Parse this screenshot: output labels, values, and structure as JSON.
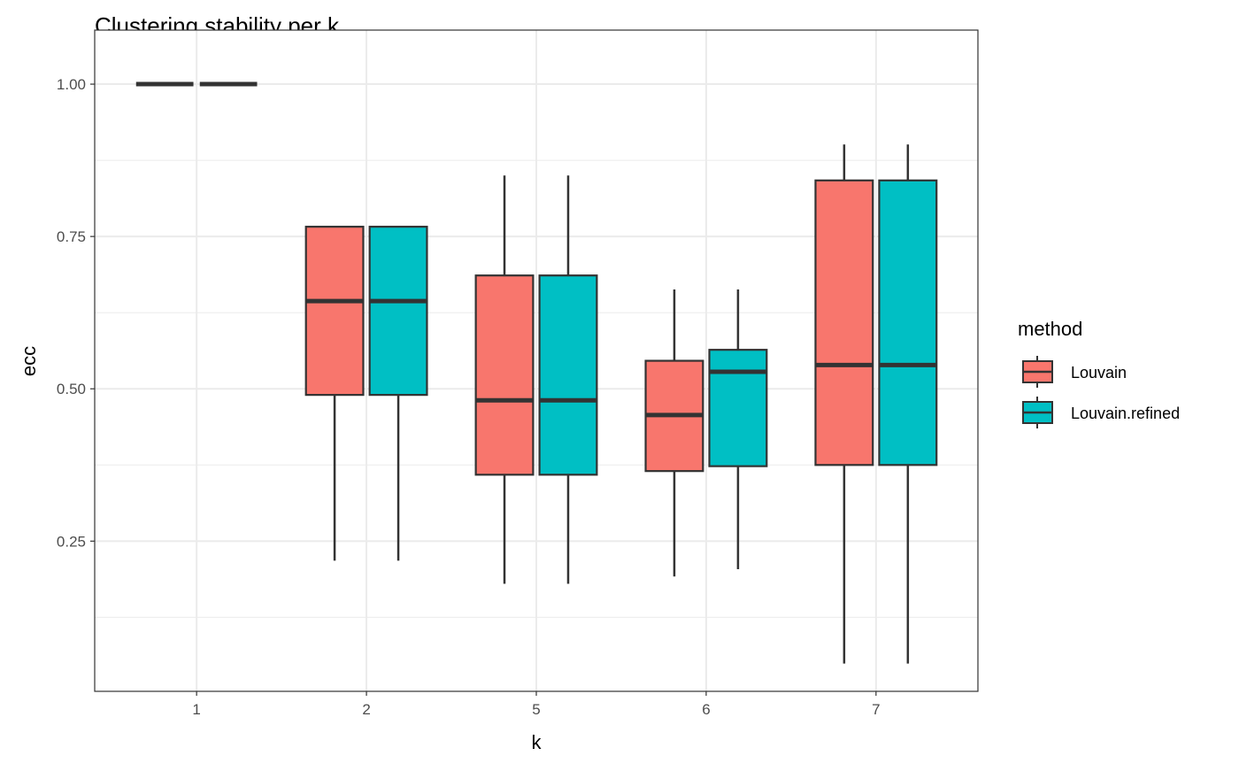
{
  "chart_data": {
    "type": "boxplot",
    "title": "Clustering stability per k",
    "xlabel": "k",
    "ylabel": "ecc",
    "categories": [
      "1",
      "2",
      "5",
      "6",
      "7"
    ],
    "yticks": [
      0.25,
      0.5,
      0.75,
      1.0
    ],
    "ytick_labels": [
      "0.25",
      "0.50",
      "0.75",
      "1.00"
    ],
    "ylim": [
      0.0035,
      1.0887
    ],
    "grid": true,
    "legend": {
      "title": "method",
      "position": "right"
    },
    "series": [
      {
        "name": "Louvain",
        "color": "#F8766D",
        "boxes": [
          {
            "k": "1",
            "min": 1.0,
            "q1": 1.0,
            "median": 1.0,
            "q3": 1.0,
            "max": 1.0
          },
          {
            "k": "2",
            "min": 0.218,
            "q1": 0.49,
            "median": 0.644,
            "q3": 0.766,
            "max": 0.766
          },
          {
            "k": "5",
            "min": 0.18,
            "q1": 0.359,
            "median": 0.481,
            "q3": 0.686,
            "max": 0.85
          },
          {
            "k": "6",
            "min": 0.192,
            "q1": 0.365,
            "median": 0.457,
            "q3": 0.546,
            "max": 0.663
          },
          {
            "k": "7",
            "min": 0.049,
            "q1": 0.375,
            "median": 0.539,
            "q3": 0.842,
            "max": 0.901
          }
        ]
      },
      {
        "name": "Louvain.refined",
        "color": "#00BFC4",
        "boxes": [
          {
            "k": "1",
            "min": 1.0,
            "q1": 1.0,
            "median": 1.0,
            "q3": 1.0,
            "max": 1.0
          },
          {
            "k": "2",
            "min": 0.218,
            "q1": 0.49,
            "median": 0.644,
            "q3": 0.766,
            "max": 0.766
          },
          {
            "k": "5",
            "min": 0.18,
            "q1": 0.359,
            "median": 0.481,
            "q3": 0.686,
            "max": 0.85
          },
          {
            "k": "6",
            "min": 0.204,
            "q1": 0.373,
            "median": 0.528,
            "q3": 0.564,
            "max": 0.663
          },
          {
            "k": "7",
            "min": 0.049,
            "q1": 0.375,
            "median": 0.539,
            "q3": 0.842,
            "max": 0.901
          }
        ]
      }
    ]
  }
}
